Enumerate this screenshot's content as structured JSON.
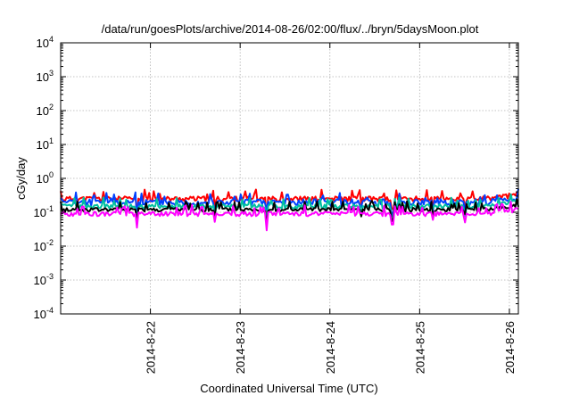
{
  "chart_data": {
    "type": "line",
    "title": "/data/run/goesPlots/archive/2014-08-26/02:00/flux/../bryn/5daysMoon.plot",
    "xlabel": "Coordinated Universal Time (UTC)",
    "ylabel": "cGy/day",
    "yscale": "log",
    "ylim": [
      0.0001,
      10000
    ],
    "xlim": [
      0,
      5.1
    ],
    "grid": true,
    "y_ticks": [
      {
        "value": 0.0001,
        "base": "10",
        "exp": "-4"
      },
      {
        "value": 0.001,
        "base": "10",
        "exp": "-3"
      },
      {
        "value": 0.01,
        "base": "10",
        "exp": "-2"
      },
      {
        "value": 0.1,
        "base": "10",
        "exp": "-1"
      },
      {
        "value": 1,
        "base": "10",
        "exp": "0"
      },
      {
        "value": 10,
        "base": "10",
        "exp": "1"
      },
      {
        "value": 100,
        "base": "10",
        "exp": "2"
      },
      {
        "value": 1000,
        "base": "10",
        "exp": "3"
      },
      {
        "value": 10000,
        "base": "10",
        "exp": "4"
      }
    ],
    "x_ticks": [
      {
        "value": 1.0,
        "label": "2014-8-22"
      },
      {
        "value": 2.0,
        "label": "2014-8-23"
      },
      {
        "value": 3.0,
        "label": "2014-8-24"
      },
      {
        "value": 4.0,
        "label": "2014-8-25"
      },
      {
        "value": 5.0,
        "label": "2014-8-26"
      }
    ],
    "series": [
      {
        "color": "#ff0000",
        "base": 0.25,
        "amp": 0.35,
        "seed": 11
      },
      {
        "color": "#0040ff",
        "base": 0.2,
        "amp": 0.45,
        "seed": 23
      },
      {
        "color": "#00c0a0",
        "base": 0.15,
        "amp": 0.3,
        "seed": 37
      },
      {
        "color": "#000000",
        "base": 0.12,
        "amp": 0.25,
        "seed": 41
      },
      {
        "color": "#ff00ff",
        "base": 0.09,
        "amp": 0.3,
        "seed": 53
      }
    ]
  }
}
